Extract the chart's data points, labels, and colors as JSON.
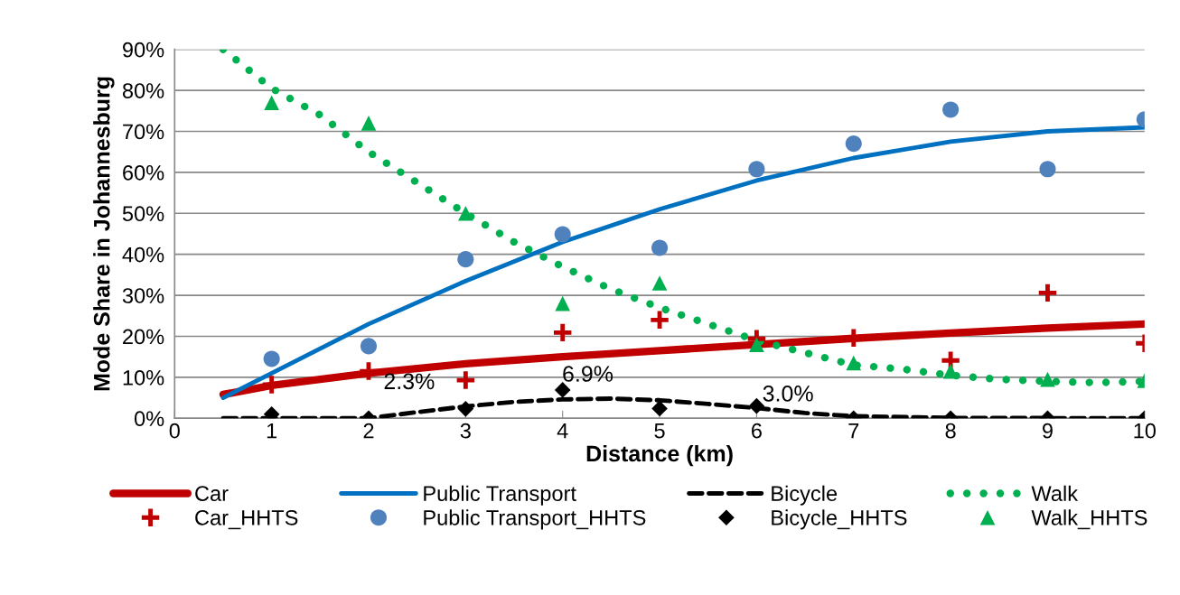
{
  "chart_data": {
    "type": "line",
    "xlabel": "Distance (km)",
    "ylabel": "Mode Share in Johannesburg",
    "xlim": [
      0,
      10
    ],
    "xticks": [
      0,
      1,
      2,
      3,
      4,
      5,
      6,
      7,
      8,
      9,
      10
    ],
    "ylim": [
      0,
      90
    ],
    "yticks": [
      {
        "value": 0,
        "label": "0%"
      },
      {
        "value": 10,
        "label": "10%"
      },
      {
        "value": 20,
        "label": "20%"
      },
      {
        "value": 30,
        "label": "30%"
      },
      {
        "value": 40,
        "label": "40%"
      },
      {
        "value": 50,
        "label": "50%"
      },
      {
        "value": 60,
        "label": "60%"
      },
      {
        "value": 70,
        "label": "70%"
      },
      {
        "value": 80,
        "label": "80%"
      },
      {
        "value": 90,
        "label": "90%"
      }
    ],
    "grid": "y",
    "legend": "bottom",
    "annotations": [
      {
        "text": "2.3%",
        "x": 3,
        "y": 2.3
      },
      {
        "text": "6.9%",
        "x": 4,
        "y": 6.9
      },
      {
        "text": "3.0%",
        "x": 6,
        "y": 3.0
      }
    ],
    "series": [
      {
        "name": "Car",
        "line_style": "solid",
        "color": "#c00000",
        "x": [
          0.5,
          1,
          2,
          3,
          4,
          5,
          6,
          7,
          8,
          9,
          10
        ],
        "values": [
          5.8,
          8,
          11,
          13.3,
          15,
          16.5,
          18,
          19.5,
          20.8,
          22,
          23
        ]
      },
      {
        "name": "Car_HHTS",
        "type": "scatter",
        "marker": "cross",
        "color": "#c00000",
        "x": [
          1,
          2,
          3,
          4,
          5,
          6,
          7,
          8,
          9,
          10
        ],
        "values": [
          8.2,
          11.5,
          9.3,
          20.9,
          24,
          19.4,
          19.6,
          14.1,
          30.6,
          18.3
        ]
      },
      {
        "name": "Public Transport",
        "line_style": "solid",
        "color": "#0070c0",
        "x": [
          0.5,
          1,
          2,
          3,
          4,
          5,
          6,
          7,
          8,
          9,
          10
        ],
        "values": [
          5,
          11,
          23,
          33.5,
          43,
          51,
          58,
          63.5,
          67.5,
          70,
          71
        ]
      },
      {
        "name": "Public Transport_HHTS",
        "type": "scatter",
        "marker": "circle",
        "color": "#4f81bd",
        "x": [
          1,
          2,
          3,
          4,
          5,
          6,
          7,
          8,
          9,
          10
        ],
        "values": [
          14.5,
          17.6,
          38.8,
          44.9,
          41.6,
          60.8,
          67,
          75.3,
          60.8,
          72.9
        ]
      },
      {
        "name": "Bicycle",
        "line_style": "dashed",
        "color": "#000000",
        "x": [
          0.5,
          2,
          2.5,
          3,
          3.5,
          4,
          4.5,
          5,
          5.5,
          6,
          6.5,
          7,
          8,
          10
        ],
        "values": [
          0,
          0,
          1.5,
          2.9,
          4,
          4.6,
          4.8,
          4.4,
          3.5,
          2.5,
          1.3,
          0.5,
          0.1,
          0
        ]
      },
      {
        "name": "Bicycle_HHTS",
        "type": "scatter",
        "marker": "diamond",
        "color": "#000000",
        "x": [
          1,
          2,
          3,
          4,
          5,
          6,
          7,
          8,
          9,
          10
        ],
        "values": [
          1,
          0,
          2.3,
          6.9,
          2.4,
          3.0,
          0,
          0,
          0,
          0
        ]
      },
      {
        "name": "Walk",
        "line_style": "dotted",
        "color": "#00b050",
        "x": [
          0.5,
          1,
          1.5,
          2,
          2.5,
          3,
          3.5,
          4,
          4.5,
          5,
          5.5,
          6,
          6.5,
          7,
          7.5,
          8,
          8.5,
          9,
          9.5,
          10
        ],
        "values": [
          90,
          80.5,
          74,
          65,
          57.5,
          50,
          43,
          37,
          31.5,
          27,
          23,
          19,
          16,
          13,
          12,
          10.5,
          9.5,
          9,
          8.7,
          9
        ]
      },
      {
        "name": "Walk_HHTS",
        "type": "scatter",
        "marker": "triangle",
        "color": "#00b050",
        "x": [
          1,
          2,
          3,
          4,
          5,
          6,
          7,
          8,
          9,
          10
        ],
        "values": [
          77,
          72,
          50,
          28,
          33,
          18,
          13.5,
          11.5,
          9.5,
          9.2
        ]
      }
    ]
  }
}
